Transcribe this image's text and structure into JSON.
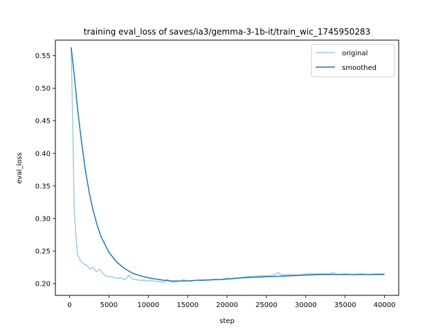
{
  "chart_data": {
    "type": "line",
    "title": "training eval_loss of saves/ia3/gemma-3-1b-it/train_wic_1745950283",
    "xlabel": "step",
    "ylabel": "eval_loss",
    "xlim": [
      -1800,
      41800
    ],
    "ylim": [
      0.182,
      0.574
    ],
    "xticks": [
      0,
      5000,
      10000,
      15000,
      20000,
      25000,
      30000,
      35000,
      40000
    ],
    "yticks": [
      0.2,
      0.25,
      0.3,
      0.35,
      0.4,
      0.45,
      0.5,
      0.55
    ],
    "xtick_labels": [
      "0",
      "5000",
      "10000",
      "15000",
      "20000",
      "25000",
      "30000",
      "35000",
      "40000"
    ],
    "ytick_labels": [
      "0.20",
      "0.25",
      "0.30",
      "0.35",
      "0.40",
      "0.45",
      "0.50",
      "0.55"
    ],
    "grid": false,
    "legend_position": "top-right",
    "series": [
      {
        "name": "original",
        "color": "#9ecae1",
        "x": [
          200,
          400,
          600,
          800,
          1000,
          1400,
          1800,
          2200,
          2600,
          3000,
          3400,
          3800,
          4200,
          4600,
          5000,
          5500,
          6000,
          6500,
          7000,
          7600,
          8000,
          8500,
          9000,
          9500,
          10000,
          10500,
          11000,
          11500,
          12000,
          12400,
          12800,
          13200,
          13600,
          14000,
          14500,
          15000,
          15500,
          16000,
          17000,
          18000,
          18500,
          19000,
          19500,
          20000,
          20500,
          21000,
          21500,
          22000,
          23000,
          24000,
          25000,
          26000,
          26500,
          27000,
          28000,
          29000,
          30000,
          31000,
          32000,
          33000,
          33500,
          34000,
          35000,
          36000,
          37000,
          38000,
          39000,
          40000
        ],
        "y": [
          0.563,
          0.45,
          0.31,
          0.275,
          0.245,
          0.235,
          0.23,
          0.228,
          0.222,
          0.225,
          0.218,
          0.222,
          0.216,
          0.212,
          0.211,
          0.21,
          0.208,
          0.209,
          0.206,
          0.213,
          0.207,
          0.206,
          0.205,
          0.205,
          0.204,
          0.205,
          0.203,
          0.203,
          0.202,
          0.207,
          0.203,
          0.202,
          0.203,
          0.204,
          0.206,
          0.204,
          0.204,
          0.205,
          0.206,
          0.205,
          0.207,
          0.206,
          0.207,
          0.209,
          0.207,
          0.209,
          0.208,
          0.21,
          0.211,
          0.212,
          0.212,
          0.213,
          0.217,
          0.213,
          0.214,
          0.213,
          0.215,
          0.215,
          0.215,
          0.215,
          0.217,
          0.214,
          0.215,
          0.214,
          0.215,
          0.214,
          0.215,
          0.215
        ]
      },
      {
        "name": "smoothed",
        "color": "#1f77b4",
        "x": [
          200,
          600,
          1000,
          1500,
          2000,
          2500,
          3000,
          3500,
          4000,
          5000,
          6000,
          7000,
          8000,
          9000,
          10000,
          11000,
          12000,
          13000,
          14000,
          15000,
          16000,
          17000,
          18000,
          19000,
          20000,
          22000,
          24000,
          26000,
          28000,
          30000,
          32000,
          34000,
          36000,
          38000,
          40000
        ],
        "y": [
          0.563,
          0.52,
          0.47,
          0.42,
          0.375,
          0.34,
          0.312,
          0.29,
          0.272,
          0.248,
          0.233,
          0.223,
          0.216,
          0.212,
          0.209,
          0.207,
          0.205,
          0.204,
          0.204,
          0.204,
          0.205,
          0.205,
          0.206,
          0.206,
          0.207,
          0.209,
          0.21,
          0.211,
          0.212,
          0.213,
          0.214,
          0.214,
          0.214,
          0.214,
          0.214
        ]
      }
    ]
  }
}
